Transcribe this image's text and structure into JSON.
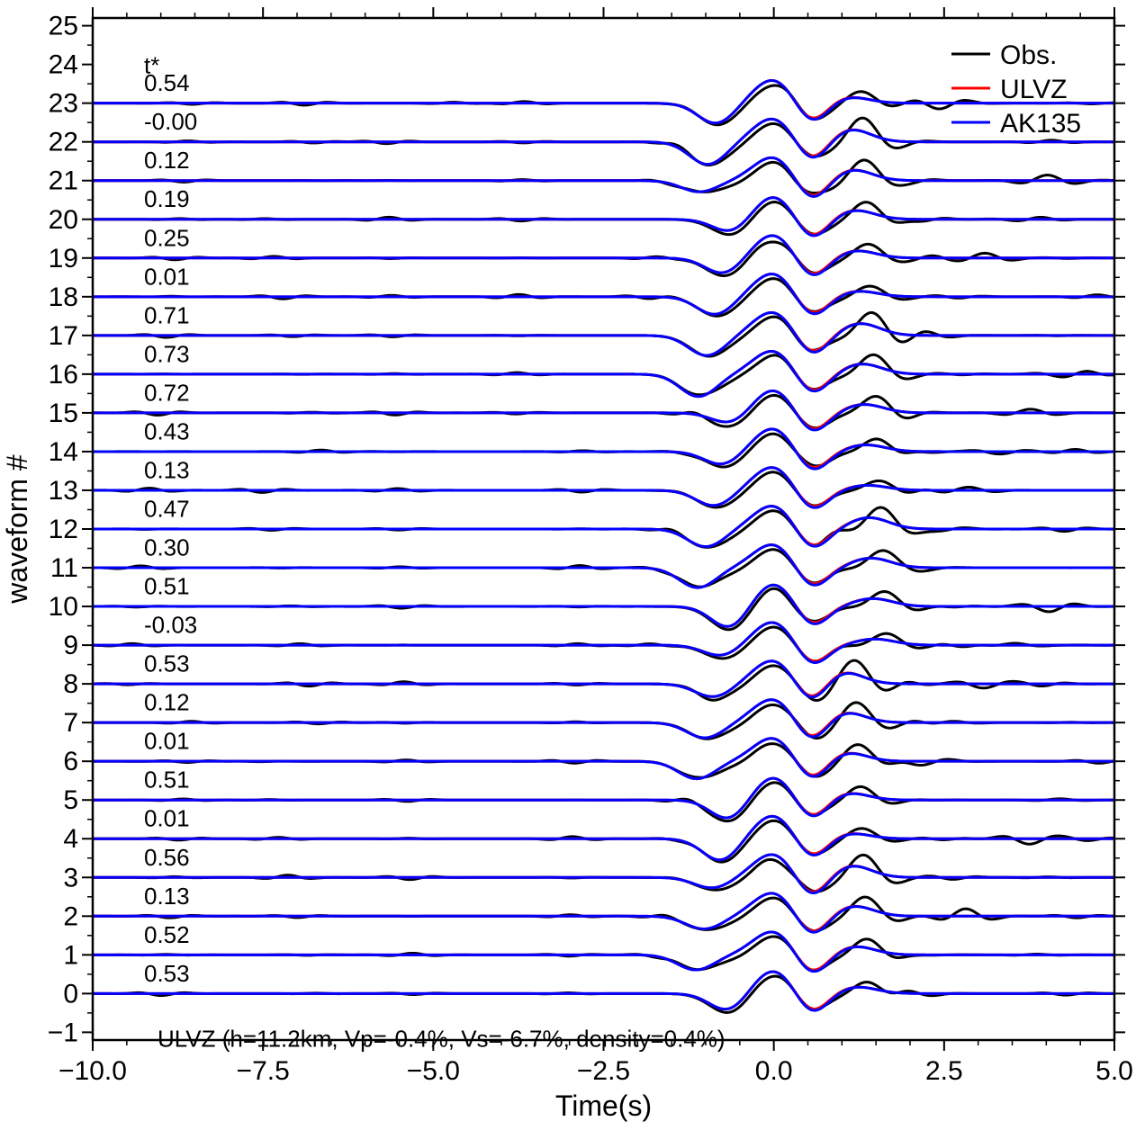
{
  "chart_data": {
    "type": "line",
    "title": "",
    "xlabel": "Time(s)",
    "ylabel": "waveform #",
    "xlim": [
      -10.0,
      5.0
    ],
    "ylim": [
      -1.2,
      25.2
    ],
    "xticks": [
      {
        "value": -10.0,
        "label": "−10.0"
      },
      {
        "value": -7.5,
        "label": "−7.5"
      },
      {
        "value": -5.0,
        "label": "−5.0"
      },
      {
        "value": -2.5,
        "label": "−2.5"
      },
      {
        "value": 0.0,
        "label": "0.0"
      },
      {
        "value": 2.5,
        "label": "2.5"
      },
      {
        "value": 5.0,
        "label": "5.0"
      }
    ],
    "x_minor_step": 0.5,
    "yticks": [
      {
        "value": -1,
        "label": "−1"
      },
      {
        "value": 0,
        "label": "0"
      },
      {
        "value": 1,
        "label": "1"
      },
      {
        "value": 2,
        "label": "2"
      },
      {
        "value": 3,
        "label": "3"
      },
      {
        "value": 4,
        "label": "4"
      },
      {
        "value": 5,
        "label": "5"
      },
      {
        "value": 6,
        "label": "6"
      },
      {
        "value": 7,
        "label": "7"
      },
      {
        "value": 8,
        "label": "8"
      },
      {
        "value": 9,
        "label": "9"
      },
      {
        "value": 10,
        "label": "10"
      },
      {
        "value": 11,
        "label": "11"
      },
      {
        "value": 12,
        "label": "12"
      },
      {
        "value": 13,
        "label": "13"
      },
      {
        "value": 14,
        "label": "14"
      },
      {
        "value": 15,
        "label": "15"
      },
      {
        "value": 16,
        "label": "16"
      },
      {
        "value": 17,
        "label": "17"
      },
      {
        "value": 18,
        "label": "18"
      },
      {
        "value": 19,
        "label": "19"
      },
      {
        "value": 20,
        "label": "20"
      },
      {
        "value": 21,
        "label": "21"
      },
      {
        "value": 22,
        "label": "22"
      },
      {
        "value": 23,
        "label": "23"
      },
      {
        "value": 24,
        "label": "24"
      },
      {
        "value": 25,
        "label": "25"
      }
    ],
    "grid": false,
    "legend": {
      "position": "top-right",
      "entries": [
        {
          "name": "Obs.",
          "color": "#000000"
        },
        {
          "name": "ULVZ",
          "color": "#ff0000"
        },
        {
          "name": "AK135",
          "color": "#0000ff"
        }
      ]
    },
    "tstar_header": "t*",
    "tstar_values": [
      "0.53",
      "0.52",
      "0.13",
      "0.56",
      "0.01",
      "0.51",
      "0.01",
      "0.12",
      "0.53",
      "-0.03",
      "0.51",
      "0.30",
      "0.47",
      "0.13",
      "0.43",
      "0.72",
      "0.73",
      "0.71",
      "0.01",
      "0.25",
      "0.19",
      "0.12",
      "-0.00",
      "0.54"
    ],
    "annotation": "ULVZ (h=11.2km, Vp=-0.4%, Vs=-6.7%, density=0.4%)",
    "colors": {
      "obs": "#000000",
      "ulvz": "#ff0000",
      "ak135": "#0000ff"
    },
    "series": [
      {
        "name": "Obs.",
        "color": "#000000",
        "values": [
          0,
          1,
          2,
          3,
          4,
          5,
          6,
          7,
          8,
          9,
          10,
          11,
          12,
          13,
          14,
          15,
          16,
          17,
          18,
          19,
          20,
          21,
          22,
          23
        ]
      },
      {
        "name": "ULVZ",
        "color": "#ff0000",
        "values": [
          0,
          1,
          2,
          3,
          4,
          5,
          6,
          7,
          8,
          9,
          10,
          11,
          12,
          13,
          14,
          15,
          16,
          17,
          18,
          19,
          20,
          21,
          22,
          23
        ]
      },
      {
        "name": "AK135",
        "color": "#0000ff",
        "values": [
          0,
          1,
          2,
          3,
          4,
          5,
          6,
          7,
          8,
          9,
          10,
          11,
          12,
          13,
          14,
          15,
          16,
          17,
          18,
          19,
          20,
          21,
          22,
          23
        ]
      }
    ]
  }
}
